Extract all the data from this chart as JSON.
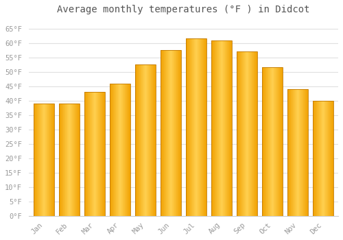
{
  "title": "Average monthly temperatures (°F ) in Didcot",
  "months": [
    "Jan",
    "Feb",
    "Mar",
    "Apr",
    "May",
    "Jun",
    "Jul",
    "Aug",
    "Sep",
    "Oct",
    "Nov",
    "Dec"
  ],
  "values": [
    39,
    39,
    43,
    46,
    52.5,
    57.5,
    61.5,
    61,
    57,
    51.5,
    44,
    40
  ],
  "bar_color_left": "#F0A000",
  "bar_color_center": "#FFD050",
  "bar_color_right": "#F0A000",
  "bar_edge_color": "#C07800",
  "background_color": "#FFFFFF",
  "plot_bg_color": "#FFFFFF",
  "grid_color": "#E0E0E0",
  "text_color": "#999999",
  "title_color": "#555555",
  "ylim": [
    0,
    68
  ],
  "yticks": [
    0,
    5,
    10,
    15,
    20,
    25,
    30,
    35,
    40,
    45,
    50,
    55,
    60,
    65
  ],
  "figsize": [
    5.0,
    3.5
  ],
  "dpi": 100,
  "bar_width": 0.82
}
